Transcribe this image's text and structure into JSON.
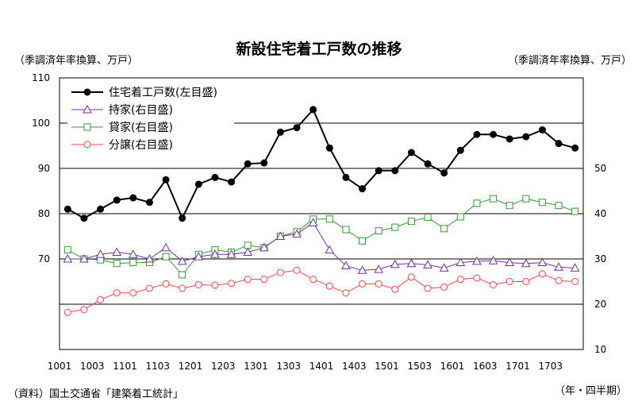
{
  "chart_data": {
    "type": "line",
    "title": "新設住宅着工戸数の推移",
    "left_unit": "（季調済年率換算、万戸）",
    "right_unit": "（季調済年率換算、万戸）",
    "source": "（資料）国土交通省「建築着工統計」",
    "x_unit": "（年・四半期）",
    "x_ticks": [
      "1001",
      "1003",
      "1101",
      "1103",
      "1201",
      "1203",
      "1301",
      "1303",
      "1401",
      "1403",
      "1501",
      "1503",
      "1601",
      "1603",
      "1701",
      "1703"
    ],
    "left_axis": {
      "min": 50,
      "max": 110,
      "ticks": [
        70,
        80,
        90,
        100,
        110
      ]
    },
    "right_axis": {
      "min": 10,
      "max": 70,
      "ticks": [
        10,
        20,
        30,
        40,
        50
      ]
    },
    "grid": true,
    "legend_position": "top-left",
    "series": [
      {
        "name": "住宅着工戸数(左目盛)",
        "axis": "left",
        "color": "#000000",
        "marker": "filled-circle",
        "values": [
          81,
          79,
          81,
          83,
          83.5,
          82.5,
          87.5,
          79,
          86.5,
          88,
          87,
          91,
          91.2,
          98,
          99,
          103,
          94.5,
          88,
          85.5,
          89.5,
          89.5,
          93.5,
          91,
          89,
          94,
          97.5,
          97.5,
          96.5,
          97,
          98.5,
          95.5,
          94.5
        ]
      },
      {
        "name": "持家(右目盛)",
        "axis": "right",
        "color": "#7030a0",
        "marker": "triangle",
        "values": [
          30,
          30,
          31,
          31.5,
          31,
          30,
          32.5,
          29.5,
          30.5,
          31,
          31,
          31.5,
          32.5,
          35,
          35.5,
          38,
          32,
          28.5,
          27.5,
          27.7,
          28.8,
          29,
          28.7,
          28,
          29.2,
          29.5,
          29.6,
          29.2,
          29,
          29.2,
          28.2,
          28
        ]
      },
      {
        "name": "貸家(右目盛)",
        "axis": "right",
        "color": "#339933",
        "marker": "square",
        "values": [
          32,
          30,
          29.8,
          29,
          29.2,
          29.2,
          30.5,
          26.5,
          31,
          32,
          31.5,
          33,
          32.5,
          35,
          36,
          38.8,
          38.8,
          36.5,
          34,
          36.2,
          37,
          38.3,
          39.2,
          36.7,
          39.3,
          42.3,
          43.3,
          41.8,
          43.3,
          42.5,
          41.8,
          40.5
        ]
      },
      {
        "name": "分譲(右目盛)",
        "axis": "right",
        "color": "#ff4444",
        "marker": "open-circle",
        "values": [
          18.2,
          18.8,
          21,
          22.5,
          22.5,
          23.5,
          24.5,
          23.5,
          24.3,
          24.2,
          24.6,
          25.5,
          25.5,
          27,
          27.5,
          25.5,
          24,
          22.5,
          24.5,
          24.5,
          23.3,
          26,
          23.5,
          23.8,
          25.5,
          25.8,
          24.3,
          25,
          25,
          26.7,
          25.2,
          25
        ]
      }
    ]
  }
}
